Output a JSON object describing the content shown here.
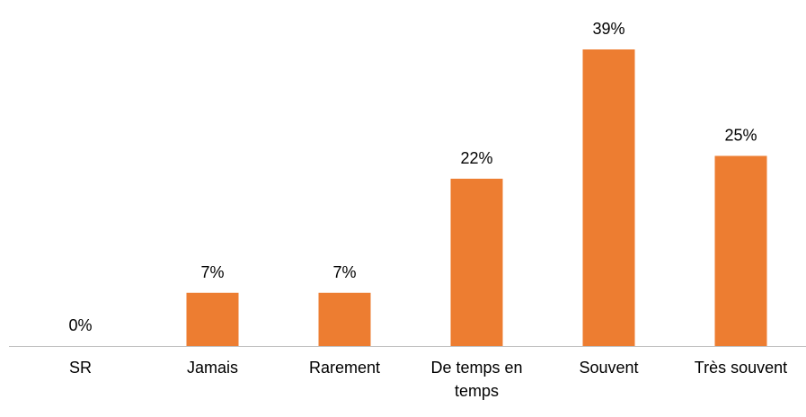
{
  "chart_data": {
    "type": "bar",
    "categories": [
      "SR",
      "Jamais",
      "Rarement",
      "De temps en temps",
      "Souvent",
      "Très souvent"
    ],
    "values": [
      0,
      7,
      7,
      22,
      39,
      25
    ],
    "value_labels": [
      "0%",
      "7%",
      "7%",
      "22%",
      "39%",
      "25%"
    ],
    "color": "#ed7d31",
    "ylim": [
      0,
      39
    ]
  }
}
